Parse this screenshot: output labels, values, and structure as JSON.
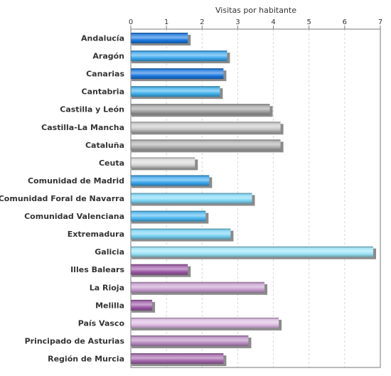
{
  "chart_data": {
    "type": "bar",
    "orientation": "horizontal",
    "title": "",
    "xlabel": "Visitas por habitante",
    "ylabel": "",
    "xlim": [
      0,
      7
    ],
    "x_ticks": [
      "0",
      "1",
      "2",
      "3",
      "4",
      "5",
      "6",
      "7"
    ],
    "x_axis_position": "top",
    "grid": true,
    "legend": "none",
    "categories": [
      "Andalucía",
      "Aragón",
      "Canarias",
      "Cantabria",
      "Castilla y León",
      "Castilla-La Mancha",
      "Cataluña",
      "Ceuta",
      "Comunidad de Madrid",
      "Comunidad Foral de Navarra",
      "Comunidad Valenciana",
      "Extremadura",
      "Galicia",
      "Illes Balears",
      "La Rioja",
      "Melilla",
      "País Vasco",
      "Principado de Asturias",
      "Región de Murcia"
    ],
    "values": [
      1.6,
      2.7,
      2.6,
      2.5,
      3.9,
      4.2,
      4.2,
      1.8,
      2.2,
      3.4,
      2.1,
      2.8,
      6.8,
      1.6,
      3.75,
      0.6,
      4.15,
      3.3,
      2.6
    ],
    "colors": [
      "#1a78e0",
      "#3aa7ee",
      "#1a78e0",
      "#3fb0ec",
      "#a3a3a3",
      "#c8c8c8",
      "#b0b0b0",
      "#d8d8d8",
      "#3aa7ee",
      "#7fd7f5",
      "#4bb7ee",
      "#78d2f3",
      "#9ae4f8",
      "#9e5aa8",
      "#c89fd0",
      "#9e5aa8",
      "#dcb9e2",
      "#b98cc3",
      "#a468ad"
    ]
  }
}
